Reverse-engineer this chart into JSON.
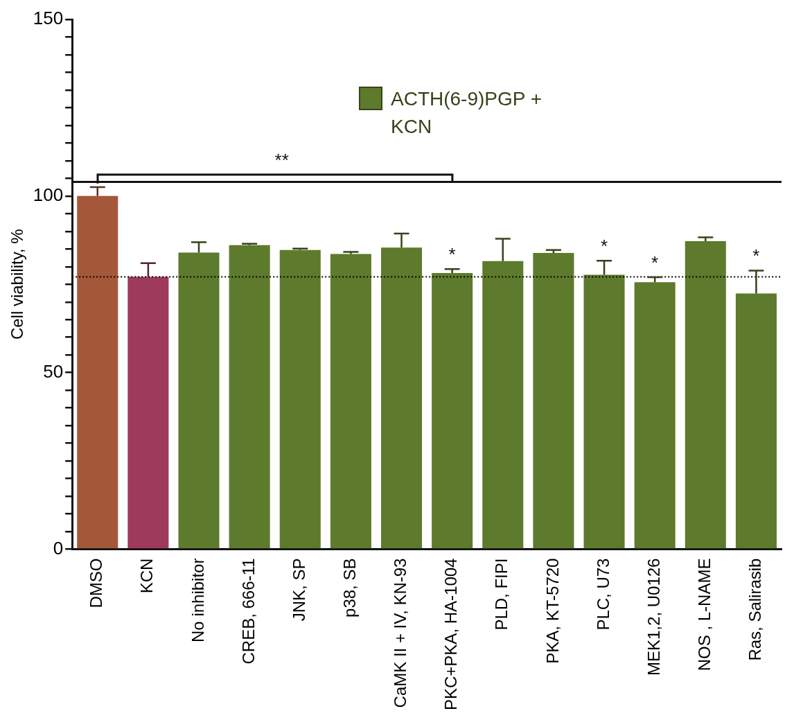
{
  "chart_data": {
    "type": "bar",
    "ylabel": "Cell viability, %",
    "categories": [
      "DMSO",
      "KCN",
      "No inhibitor",
      "CREB, 666-11",
      "JNK, SP",
      "p38, SB",
      "CaMK II + IV, KN-93",
      "PKC+PKA, HA-1004",
      "PLD, FIPI",
      "PKA, KT-5720",
      "PLC, U73",
      "MEK1,2, U0126",
      "NOS , L-NAME",
      "Ras, Salirasib"
    ],
    "series": [
      {
        "color": "#a5573a",
        "values": [
          100,
          null,
          null,
          null,
          null,
          null,
          null,
          null,
          null,
          null,
          null,
          null,
          null,
          null
        ],
        "errors": [
          2.5,
          null,
          null,
          null,
          null,
          null,
          null,
          null,
          null,
          null,
          null,
          null,
          null,
          null
        ]
      },
      {
        "color": "#9e3a5c",
        "values": [
          null,
          77.1,
          null,
          null,
          null,
          null,
          null,
          null,
          null,
          null,
          null,
          null,
          null,
          null
        ],
        "errors": [
          null,
          3.9,
          null,
          null,
          null,
          null,
          null,
          null,
          null,
          null,
          null,
          null,
          null,
          null
        ]
      },
      {
        "name": "ACTH(6-9)PGP + KCN",
        "color": "#5e7a2c",
        "values": [
          null,
          null,
          84.0,
          86.1,
          84.7,
          83.6,
          85.4,
          78.2,
          81.6,
          83.9,
          77.7,
          75.6,
          87.2,
          72.4
        ],
        "errors": [
          null,
          null,
          2.9,
          0.4,
          0.4,
          0.6,
          4.0,
          1.1,
          6.3,
          0.8,
          4.0,
          1.4,
          1.1,
          6.5
        ]
      }
    ],
    "ylim": [
      0,
      150
    ],
    "yticks": [
      0,
      {
        "value": 5,
        "label": null
      },
      {
        "value": 10,
        "label": null
      },
      {
        "value": 15,
        "label": null
      },
      {
        "value": 20,
        "label": null
      },
      {
        "value": 25,
        "label": null
      },
      {
        "value": 30,
        "label": null
      },
      {
        "value": 35,
        "label": null
      },
      {
        "value": 40,
        "label": null
      },
      {
        "value": 45,
        "label": null
      },
      50,
      {
        "value": 55,
        "label": null
      },
      {
        "value": 60,
        "label": null
      },
      {
        "value": 65,
        "label": null
      },
      {
        "value": 70,
        "label": null
      },
      {
        "value": 75,
        "label": null
      },
      {
        "value": 80,
        "label": null
      },
      {
        "value": 85,
        "label": null
      },
      {
        "value": 90,
        "label": null
      },
      {
        "value": 95,
        "label": null
      },
      100,
      {
        "value": 105,
        "label": null
      },
      {
        "value": 110,
        "label": null
      },
      {
        "value": 115,
        "label": null
      },
      {
        "value": 120,
        "label": null
      },
      {
        "value": 125,
        "label": null
      },
      {
        "value": 130,
        "label": null
      },
      {
        "value": 135,
        "label": null
      },
      {
        "value": 140,
        "label": null
      },
      {
        "value": 145,
        "label": null
      },
      150
    ],
    "ref_lines": [
      {
        "axis": "y",
        "value": 77.1,
        "color": "#000000",
        "line_style": "dotted"
      },
      {
        "axis": "y",
        "value": 104,
        "color": "#111111",
        "line_style": "solid"
      }
    ],
    "annotations": [
      "**",
      {
        "text": "*",
        "x": "PKC+PKA, HA-1004",
        "y": 79.3
      },
      {
        "text": "*",
        "x": "PLC, U73",
        "y": 81.7
      },
      {
        "text": "*",
        "x": "MEK1,2, U0126",
        "y": 77.0
      },
      {
        "text": "*",
        "x": "Ras, Salirasib",
        "y": 78.9
      }
    ],
    "grid": false,
    "legend": "top right"
  }
}
